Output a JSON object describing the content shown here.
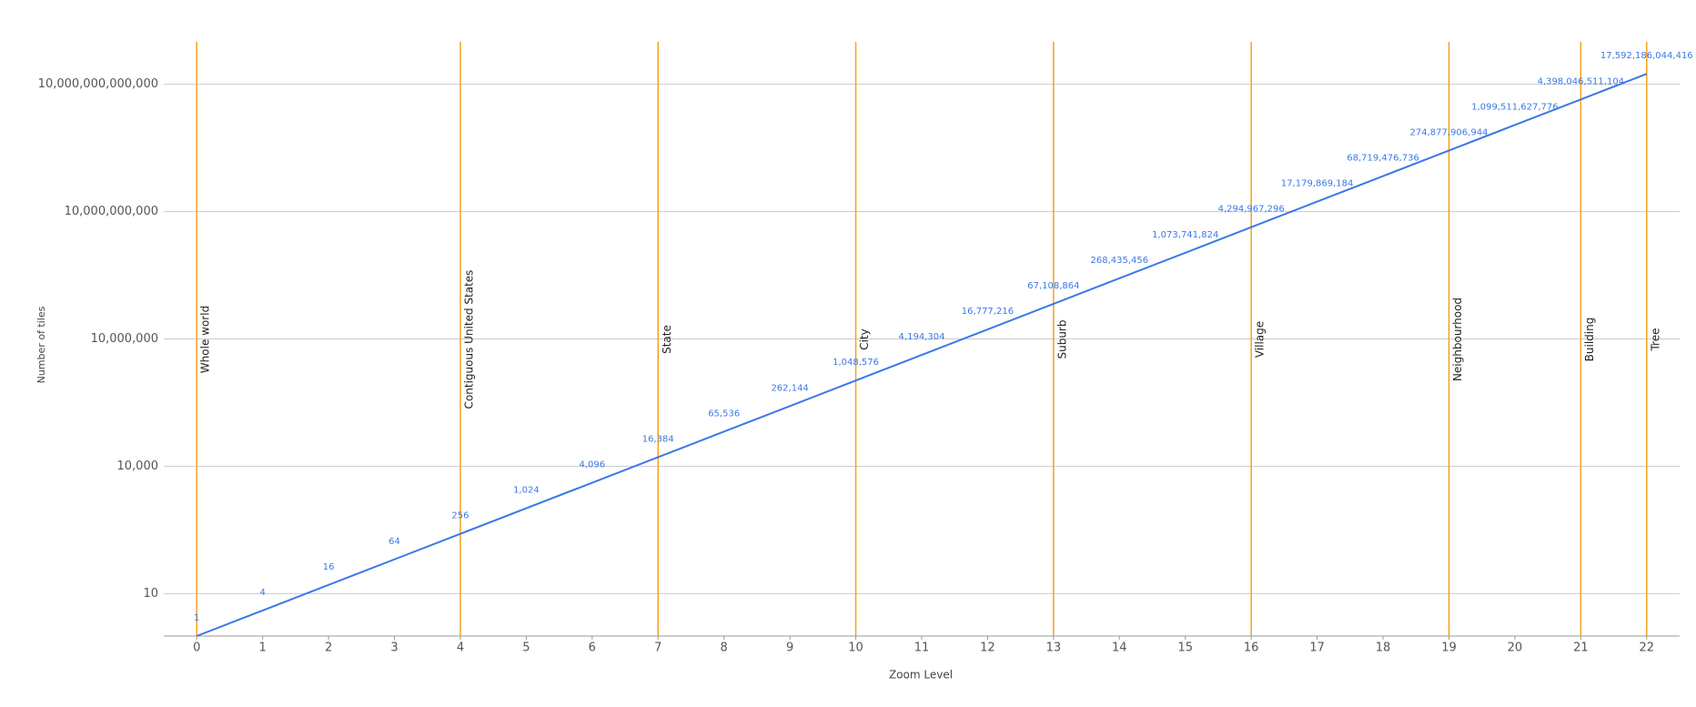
{
  "chart_data": {
    "type": "line",
    "x_label": "Zoom Level",
    "y_label": "Number of tiles",
    "x": [
      0,
      1,
      2,
      3,
      4,
      5,
      6,
      7,
      8,
      9,
      10,
      11,
      12,
      13,
      14,
      15,
      16,
      17,
      18,
      19,
      20,
      21,
      22
    ],
    "values": [
      1,
      4,
      16,
      64,
      256,
      1024,
      4096,
      16384,
      65536,
      262144,
      1048576,
      4194304,
      16777216,
      67108864,
      268435456,
      1073741824,
      4294967296,
      17179869184,
      68719476736,
      274877906944,
      1099511627776,
      4398046511104,
      17592186044416
    ],
    "value_labels": [
      "1",
      "4",
      "16",
      "64",
      "256",
      "1,024",
      "4,096",
      "16,384",
      "65,536",
      "262,144",
      "1,048,576",
      "4,194,304",
      "16,777,216",
      "67,108,864",
      "268,435,456",
      "1,073,741,824",
      "4,294,967,296",
      "17,179,869,184",
      "68,719,476,736",
      "274,877,906,944",
      "1,099,511,627,776",
      "4,398,046,511,104",
      "17,592,186,044,416"
    ],
    "color": "#3b78e7",
    "xlim": [
      -0.5,
      22.5
    ],
    "xticks": [
      0,
      1,
      2,
      3,
      4,
      5,
      6,
      7,
      8,
      9,
      10,
      11,
      12,
      13,
      14,
      15,
      16,
      17,
      18,
      19,
      20,
      21,
      22
    ],
    "ylim": [
      1,
      100000000000000
    ],
    "y_scale": "log",
    "yticks": [
      {
        "value": 10,
        "label": "10"
      },
      {
        "value": 10000,
        "label": "10,000"
      },
      {
        "value": 10000000,
        "label": "10,000,000"
      },
      {
        "value": 10000000000,
        "label": "10,000,000,000"
      },
      {
        "value": 10000000000000,
        "label": "10,000,000,000,000"
      }
    ],
    "grid": true,
    "annotation_color": "#f5a11c",
    "annotations": [
      {
        "x": 0,
        "label": "Whole world"
      },
      {
        "x": 4,
        "label": "Contiguous United States"
      },
      {
        "x": 7,
        "label": "State"
      },
      {
        "x": 10,
        "label": "City"
      },
      {
        "x": 13,
        "label": "Suburb"
      },
      {
        "x": 16,
        "label": "Village"
      },
      {
        "x": 19,
        "label": "Neighbourhood"
      },
      {
        "x": 21,
        "label": "Building"
      },
      {
        "x": 22,
        "label": "Tree"
      }
    ]
  }
}
